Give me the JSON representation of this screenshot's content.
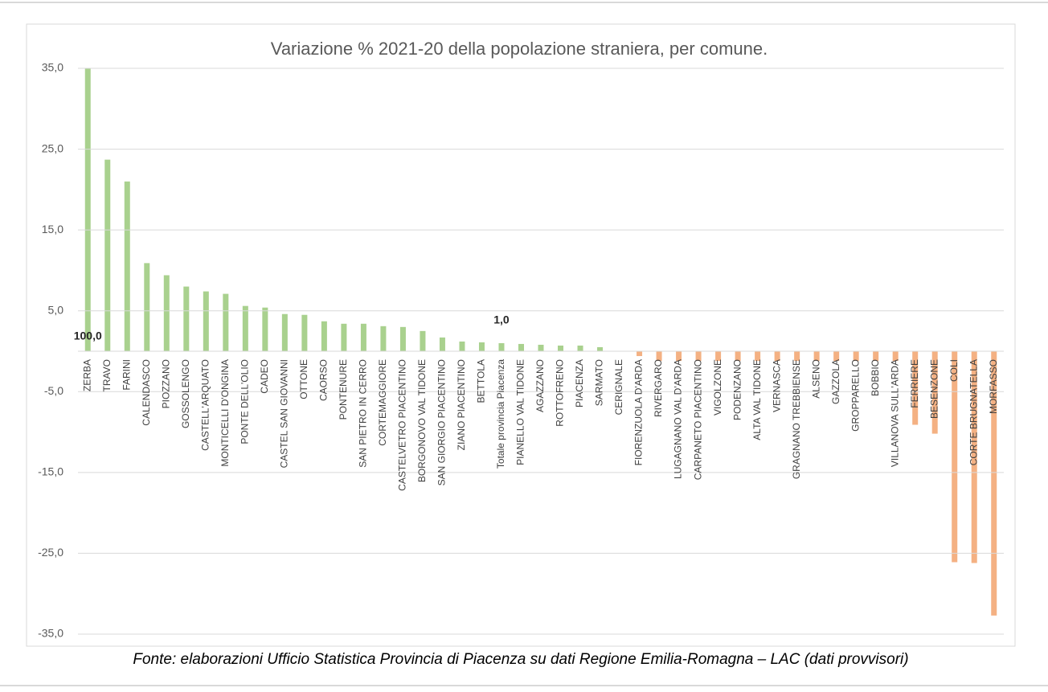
{
  "chart_data": {
    "type": "bar",
    "title": "Variazione %  2021-20 della popolazione straniera, per comune.",
    "source": "Fonte: elaborazioni Ufficio Statistica Provincia di Piacenza su dati Regione Emilia-Romagna – LAC (dati provvisori)",
    "categories": [
      "ZERBA",
      "TRAVO",
      "FARINI",
      "CALENDASCO",
      "PIOZZANO",
      "GOSSOLENGO",
      "CASTELL'ARQUATO",
      "MONTICELLI D'ONGINA",
      "PONTE DELL'OLIO",
      "CADEO",
      "CASTEL SAN GIOVANNI",
      "OTTONE",
      "CAORSO",
      "PONTENURE",
      "SAN PIETRO IN CERRO",
      "CORTEMAGGIORE",
      "CASTELVETRO PIACENTINO",
      "BORGONOVO VAL TIDONE",
      "SAN GIORGIO PIACENTINO",
      "ZIANO PIACENTINO",
      "BETTOLA",
      "Totale provincia Piacenza",
      "PIANELLO VAL TIDONE",
      "AGAZZANO",
      "ROTTOFRENO",
      "PIACENZA",
      "SARMATO",
      "CERIGNALE",
      "FIORENZUOLA D'ARDA",
      "RIVERGARO",
      "LUGAGNANO VAL D'ARDA",
      "CARPANETO PIACENTINO",
      "VIGOLZONE",
      "PODENZANO",
      "ALTA VAL TIDONE",
      "VERNASCA",
      "GRAGNANO TREBBIENSE",
      "ALSENO",
      "GAZZOLA",
      "GROPPARELLO",
      "BOBBIO",
      "VILLANOVA SULL'ARDA",
      "FERRIERE",
      "BESENZONE",
      "COLI",
      "CORTE BRUGNATELLA",
      "MORFASSO"
    ],
    "values": [
      100,
      23.7,
      21.0,
      10.9,
      9.4,
      8.0,
      7.4,
      7.1,
      5.6,
      5.4,
      4.6,
      4.5,
      3.7,
      3.4,
      3.4,
      3.1,
      3.0,
      2.5,
      1.7,
      1.2,
      1.1,
      1.0,
      0.9,
      0.8,
      0.7,
      0.7,
      0.5,
      0,
      -0.6,
      -1.2,
      -1.2,
      -1.2,
      -1.2,
      -1.2,
      -1.2,
      -1.2,
      -1.2,
      -1.2,
      -1.2,
      -1.2,
      -1.2,
      -1.2,
      -9.1,
      -10.2,
      -26.1,
      -26.2,
      -32.7
    ],
    "value_labels": [
      "100,0",
      null,
      null,
      null,
      null,
      null,
      null,
      null,
      null,
      null,
      null,
      null,
      null,
      null,
      null,
      null,
      null,
      null,
      null,
      null,
      null,
      "1,0",
      null,
      null,
      null,
      null,
      null,
      null,
      null,
      null,
      null,
      null,
      null,
      null,
      null,
      null,
      null,
      null,
      null,
      null,
      null,
      null,
      null,
      null,
      null,
      null,
      null
    ],
    "positive_color": "#a9d18e",
    "negative_color": "#f4b183",
    "ylim": [
      -35,
      35
    ],
    "yticks": [
      {
        "value": 35,
        "label": "35,0"
      },
      {
        "value": 25,
        "label": "25,0"
      },
      {
        "value": 15,
        "label": "15,0"
      },
      {
        "value": 5,
        "label": "5,0"
      },
      {
        "value": -5,
        "label": "-5,0"
      },
      {
        "value": -15,
        "label": "-15,0"
      },
      {
        "value": -25,
        "label": "-25,0"
      },
      {
        "value": -35,
        "label": "-35,0"
      }
    ],
    "grid": true
  }
}
